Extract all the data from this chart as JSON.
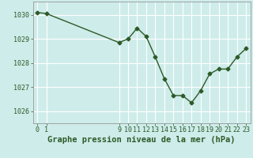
{
  "x": [
    0,
    1,
    9,
    10,
    11,
    12,
    13,
    14,
    15,
    16,
    17,
    18,
    19,
    20,
    21,
    22,
    23
  ],
  "y": [
    1030.1,
    1030.05,
    1028.85,
    1029.0,
    1029.45,
    1029.1,
    1028.25,
    1027.35,
    1026.65,
    1026.65,
    1026.35,
    1026.85,
    1027.55,
    1027.75,
    1027.75,
    1028.25,
    1028.6
  ],
  "line_color": "#2d5a27",
  "marker": "D",
  "marker_size": 2.5,
  "line_width": 1.0,
  "bg_color": "#ceecea",
  "grid_color": "#ffffff",
  "title": "Graphe pression niveau de la mer (hPa)",
  "ylim": [
    1025.5,
    1030.55
  ],
  "yticks": [
    1026,
    1027,
    1028,
    1029,
    1030
  ],
  "xticks": [
    0,
    1,
    9,
    10,
    11,
    12,
    13,
    14,
    15,
    16,
    17,
    18,
    19,
    20,
    21,
    22,
    23
  ],
  "tick_color": "#2d5a27",
  "tick_fontsize": 6.0,
  "title_fontsize": 7.5,
  "title_fontweight": "bold"
}
